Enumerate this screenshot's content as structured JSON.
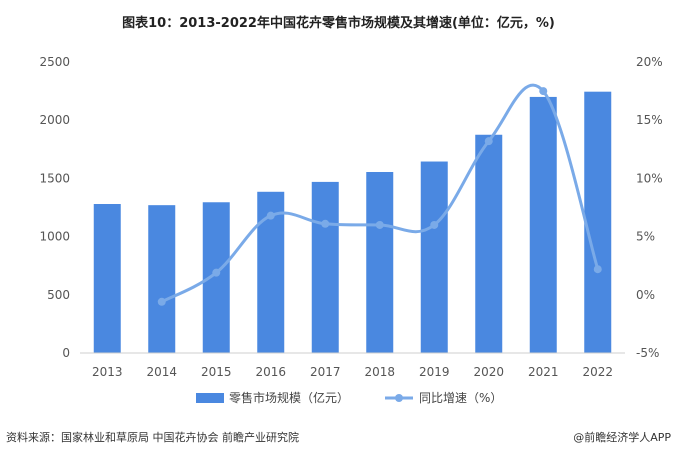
{
  "header": {
    "title": "图表10：2013-2022年中国花卉零售市场规模及其增速(单位：亿元，%)"
  },
  "chart_data": {
    "type": "bar",
    "categories": [
      "2013",
      "2014",
      "2015",
      "2016",
      "2017",
      "2018",
      "2019",
      "2020",
      "2021",
      "2022"
    ],
    "series": [
      {
        "name": "零售市场规模（亿元）",
        "type": "bar",
        "axis": "left",
        "color": "#4a88e0",
        "values": [
          1280,
          1270,
          1295,
          1385,
          1470,
          1555,
          1645,
          1875,
          2200,
          2245
        ]
      },
      {
        "name": "同比增速（%）",
        "type": "line",
        "axis": "right",
        "color": "#7aaae8",
        "values": [
          null,
          -0.6,
          1.9,
          6.8,
          6.1,
          6.0,
          6.0,
          13.2,
          17.5,
          2.2
        ]
      }
    ],
    "left_axis": {
      "min": 0,
      "max": 2500,
      "ticks": [
        "0",
        "500",
        "1000",
        "1500",
        "2000",
        "2500"
      ]
    },
    "right_axis": {
      "min": -5,
      "max": 20,
      "ticks": [
        "-5%",
        "0%",
        "5%",
        "10%",
        "15%",
        "20%"
      ]
    },
    "grid": false,
    "legend_position": "bottom"
  },
  "footer": {
    "source": "资料来源：国家林业和草原局 中国花卉协会 前瞻产业研究院",
    "brand": "@前瞻经济学人APP"
  }
}
